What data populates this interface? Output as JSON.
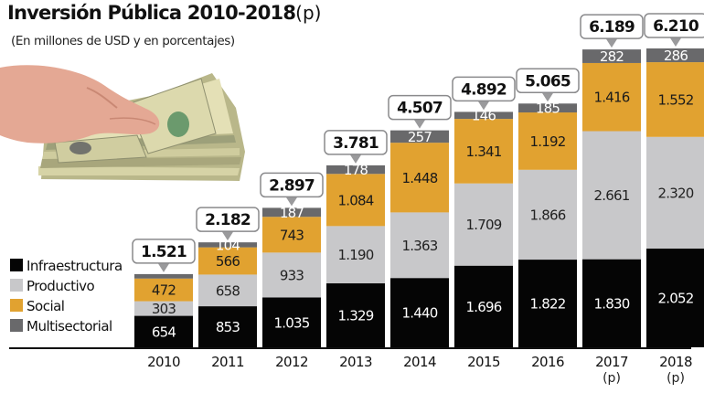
{
  "chart_data": {
    "type": "bar",
    "stacked": true,
    "title": "Inversión Pública 2010-2018",
    "title_suffix": "(p)",
    "subtitle": "(En millones de USD y en porcentajes)",
    "xlabel": "",
    "ylabel": "",
    "grid": false,
    "legend_position": "left",
    "categories": [
      "2010",
      "2011",
      "2012",
      "2013",
      "2014",
      "2015",
      "2016",
      "2017",
      "2018"
    ],
    "category_notes": [
      "",
      "",
      "",
      "",
      "",
      "",
      "",
      "(p)",
      "(p)"
    ],
    "series": [
      {
        "name": "Infraestructura",
        "color": "#050505",
        "label_color": "#ffffff",
        "values": [
          654,
          853,
          1035,
          1329,
          1440,
          1696,
          1822,
          1830,
          2052
        ],
        "labels": [
          "654",
          "853",
          "1.035",
          "1.329",
          "1.440",
          "1.696",
          "1.822",
          "1.830",
          "2.052"
        ]
      },
      {
        "name": "Productivo",
        "color": "#c8c8ca",
        "label_color": "#222222",
        "values": [
          303,
          658,
          933,
          1190,
          1363,
          1709,
          1866,
          2661,
          2320
        ],
        "labels": [
          "303",
          "658",
          "933",
          "1.190",
          "1.363",
          "1.709",
          "1.866",
          "2.661",
          "2.320"
        ]
      },
      {
        "name": "Social",
        "color": "#e1a230",
        "label_color": "#1a1a1a",
        "values": [
          472,
          566,
          743,
          1084,
          1448,
          1341,
          1192,
          1416,
          1552
        ],
        "labels": [
          "472",
          "566",
          "743",
          "1.084",
          "1.448",
          "1.341",
          "1.192",
          "1.416",
          "1.552"
        ]
      },
      {
        "name": "Multisectorial",
        "color": "#69696b",
        "label_color": "#ffffff",
        "values": [
          92,
          104,
          187,
          178,
          257,
          146,
          185,
          282,
          286
        ],
        "labels": [
          "",
          "104",
          "187",
          "178",
          "257",
          "146",
          "185",
          "282",
          "286"
        ]
      }
    ],
    "totals": [
      1521,
      2182,
      2897,
      3781,
      4507,
      4892,
      5065,
      6189,
      6210
    ],
    "total_labels": [
      "1.521",
      "2.182",
      "2.897",
      "3.781",
      "4.507",
      "4.892",
      "5.065",
      "6.189",
      "6.210"
    ],
    "ylim": [
      0,
      6210
    ]
  },
  "decorations": {
    "image": "hand-holding-dollar-bills"
  }
}
